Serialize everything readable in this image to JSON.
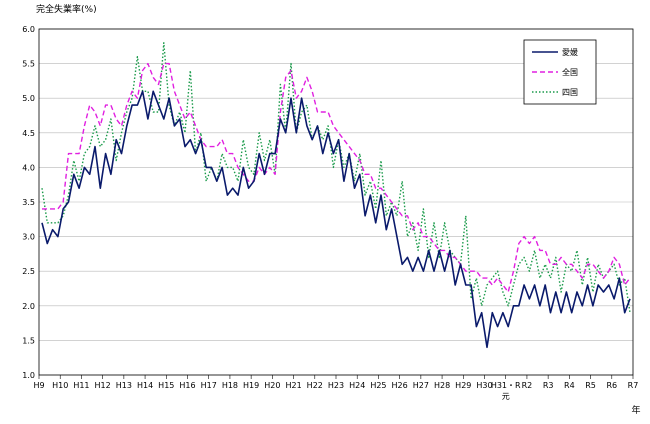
{
  "chart_data": {
    "type": "line",
    "title": "",
    "ylabel": "完全失業率(%)",
    "xlabel": "年",
    "ylim": [
      1.0,
      6.0
    ],
    "yticks": [
      1.0,
      1.5,
      2.0,
      2.5,
      3.0,
      3.5,
      4.0,
      4.5,
      5.0,
      5.5,
      6.0
    ],
    "ytick_labels": [
      "1.0",
      "1.5",
      "2.0",
      "2.5",
      "3.0",
      "3.5",
      "4.0",
      "4.5",
      "5.0",
      "5.5",
      "6.0"
    ],
    "x_tick_labels": [
      "H9",
      "H10",
      "H11",
      "H12",
      "H13",
      "H14",
      "H15",
      "H16",
      "H17",
      "H18",
      "H19",
      "H20",
      "H21",
      "H22",
      "H23",
      "H24",
      "H25",
      "H26",
      "H27",
      "H28",
      "H29",
      "H30",
      "H31・R元",
      "R2",
      "R3",
      "R4",
      "R5",
      "R6",
      "R7"
    ],
    "x_tick_label_line2": [
      "",
      "",
      "",
      "",
      "",
      "",
      "",
      "",
      "",
      "",
      "",
      "",
      "",
      "",
      "",
      "",
      "",
      "",
      "",
      "",
      "",
      "",
      "元",
      "",
      "",
      "",
      "",
      "",
      ""
    ],
    "x_tick_label_line1": [
      "H9",
      "H10",
      "H11",
      "H12",
      "H13",
      "H14",
      "H15",
      "H16",
      "H17",
      "H18",
      "H19",
      "H20",
      "H21",
      "H22",
      "H23",
      "H24",
      "H25",
      "H26",
      "H27",
      "H28",
      "H29",
      "H30",
      "H31・R",
      "R2",
      "R3",
      "R4",
      "R5",
      "R6",
      "R7"
    ],
    "grid": true,
    "legend_position": "top-right",
    "series": [
      {
        "name": "愛媛",
        "color": "#0a1a6b",
        "dash": "solid",
        "values": [
          3.2,
          2.9,
          3.1,
          3.0,
          3.4,
          3.5,
          3.9,
          3.7,
          4.0,
          3.9,
          4.3,
          3.7,
          4.2,
          3.9,
          4.4,
          4.2,
          4.6,
          4.9,
          4.9,
          5.1,
          4.7,
          5.1,
          4.9,
          4.7,
          5.0,
          4.6,
          4.7,
          4.3,
          4.4,
          4.2,
          4.4,
          4.0,
          4.0,
          3.8,
          4.0,
          3.6,
          3.7,
          3.6,
          4.0,
          3.7,
          3.8,
          4.2,
          3.9,
          4.2,
          4.2,
          4.7,
          4.5,
          5.0,
          4.5,
          5.0,
          4.6,
          4.4,
          4.6,
          4.2,
          4.5,
          4.2,
          4.4,
          3.8,
          4.2,
          3.7,
          3.9,
          3.3,
          3.6,
          3.2,
          3.6,
          3.1,
          3.4,
          3.0,
          2.6,
          2.7,
          2.5,
          2.7,
          2.5,
          2.8,
          2.5,
          2.8,
          2.5,
          2.8,
          2.3,
          2.6,
          2.3,
          2.3,
          1.7,
          1.9,
          1.4,
          1.9,
          1.7,
          1.9,
          1.7,
          2.0,
          2.0,
          2.3,
          2.1,
          2.3,
          2.0,
          2.3,
          1.9,
          2.2,
          1.9,
          2.2,
          1.9,
          2.2,
          2.0,
          2.3,
          2.0,
          2.3,
          2.2,
          2.3,
          2.1,
          2.4,
          1.9,
          2.1
        ]
      },
      {
        "name": "全国",
        "color": "#e020e0",
        "dash": "dashed",
        "values": [
          3.4,
          3.4,
          3.4,
          3.4,
          3.5,
          4.2,
          4.2,
          4.2,
          4.6,
          4.9,
          4.8,
          4.6,
          4.9,
          4.9,
          4.7,
          4.6,
          4.9,
          5.1,
          5.0,
          5.4,
          5.5,
          5.3,
          5.2,
          5.5,
          5.5,
          5.1,
          4.9,
          4.7,
          4.8,
          4.6,
          4.4,
          4.3,
          4.3,
          4.3,
          4.4,
          4.2,
          4.2,
          4.0,
          3.9,
          3.8,
          3.8,
          4.0,
          3.9,
          4.0,
          3.9,
          4.8,
          5.3,
          5.4,
          5.0,
          5.1,
          5.3,
          5.1,
          4.8,
          4.8,
          4.8,
          4.6,
          4.5,
          4.4,
          4.3,
          4.2,
          4.1,
          3.9,
          3.9,
          3.7,
          3.7,
          3.6,
          3.5,
          3.4,
          3.3,
          3.3,
          3.1,
          3.2,
          3.0,
          3.0,
          2.9,
          2.8,
          2.8,
          2.7,
          2.7,
          2.6,
          2.5,
          2.5,
          2.5,
          2.4,
          2.4,
          2.3,
          2.4,
          2.3,
          2.2,
          2.5,
          2.9,
          3.0,
          2.9,
          3.0,
          2.8,
          2.8,
          2.6,
          2.6,
          2.7,
          2.6,
          2.6,
          2.5,
          2.4,
          2.6,
          2.6,
          2.5,
          2.4,
          2.5,
          2.7,
          2.6,
          2.3,
          2.4
        ]
      },
      {
        "name": "四国",
        "color": "#1a9a4a",
        "dash": "dotted",
        "values": [
          3.7,
          3.2,
          3.2,
          3.2,
          3.3,
          3.6,
          4.1,
          3.8,
          4.2,
          4.3,
          4.6,
          4.3,
          4.4,
          4.7,
          4.1,
          4.5,
          4.8,
          5.0,
          5.6,
          5.1,
          5.1,
          4.8,
          4.8,
          5.8,
          4.9,
          4.6,
          4.8,
          4.5,
          5.4,
          4.2,
          4.5,
          3.8,
          4.0,
          3.8,
          4.2,
          4.0,
          4.0,
          3.8,
          4.4,
          4.0,
          3.9,
          4.5,
          4.1,
          4.4,
          3.9,
          5.2,
          4.5,
          5.5,
          4.5,
          4.8,
          4.9,
          4.4,
          4.6,
          4.4,
          4.6,
          4.0,
          4.4,
          4.0,
          4.2,
          3.8,
          4.2,
          3.6,
          3.8,
          3.4,
          4.1,
          3.3,
          3.5,
          3.3,
          3.8,
          3.0,
          3.2,
          2.8,
          3.4,
          2.7,
          3.2,
          2.7,
          3.2,
          2.8,
          2.7,
          2.6,
          3.3,
          2.1,
          2.4,
          2.0,
          2.3,
          2.4,
          2.5,
          2.2,
          2.0,
          2.3,
          2.6,
          2.7,
          2.5,
          2.8,
          2.4,
          2.6,
          2.4,
          2.7,
          2.2,
          2.6,
          2.5,
          2.8,
          2.3,
          2.7,
          2.2,
          2.6,
          2.4,
          2.5,
          2.6,
          2.3,
          2.4,
          1.9
        ]
      }
    ]
  }
}
